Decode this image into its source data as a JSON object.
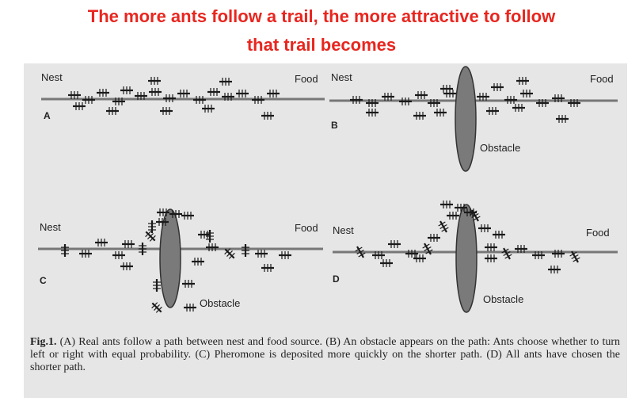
{
  "title": {
    "line1": "The more ants follow a trail, the more attractive to follow",
    "line2": "that trail becomes"
  },
  "panels": {
    "A": {
      "letter": "A",
      "nest": "Nest",
      "food": "Food"
    },
    "B": {
      "letter": "B",
      "nest": "Nest",
      "food": "Food",
      "obstacle": "Obstacle"
    },
    "C": {
      "letter": "C",
      "nest": "Nest",
      "food": "Food",
      "obstacle": "Obstacle"
    },
    "D": {
      "letter": "D",
      "nest": "Nest",
      "food": "Food",
      "obstacle": "Obstacle"
    }
  },
  "caption": {
    "label": "Fig.1.",
    "text": " (A) Real ants follow a path between nest and food source.  (B) An obstacle appears on the path: Ants choose whether to turn left or right with equal probability.  (C) Pheromone is deposited more quickly on the shorter path.  (D) All ants have chosen the shorter path."
  },
  "colors": {
    "title": "#e8261f",
    "panel_bg": "#e6e6e6",
    "trail": "#777777",
    "obstacle": "#7a7a7a",
    "ant": "#1a1a1a"
  }
}
